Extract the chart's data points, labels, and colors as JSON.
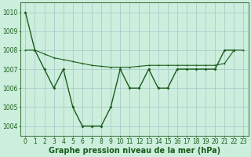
{
  "title": "Graphe pression niveau de la mer (hPa)",
  "background_color": "#cceedd",
  "grid_color": "#aacccc",
  "line_color": "#1a5c1a",
  "x_labels": [
    "0",
    "1",
    "2",
    "3",
    "4",
    "5",
    "6",
    "7",
    "8",
    "9",
    "10",
    "11",
    "12",
    "13",
    "14",
    "15",
    "16",
    "17",
    "18",
    "19",
    "20",
    "21",
    "22",
    "23"
  ],
  "series1": [
    1010,
    1008,
    1007,
    1006,
    1007,
    1005,
    1004,
    1004,
    1004,
    1005,
    1007,
    1006,
    1006,
    1007,
    1006,
    1006,
    1007,
    1007,
    1007,
    1007,
    1007,
    1008,
    1008,
    null
  ],
  "series2": [
    1008.0,
    1008.0,
    1007.8,
    1007.6,
    1007.5,
    1007.4,
    1007.3,
    1007.2,
    1007.15,
    1007.1,
    1007.1,
    1007.1,
    1007.15,
    1007.2,
    1007.2,
    1007.2,
    1007.2,
    1007.2,
    1007.2,
    1007.2,
    1007.2,
    1007.3,
    1008.0,
    1008.0
  ],
  "ylim": [
    1003.5,
    1010.5
  ],
  "yticks": [
    1004,
    1005,
    1006,
    1007,
    1008,
    1009,
    1010
  ],
  "title_fontsize": 7,
  "tick_fontsize": 5.5,
  "xlabel_fontsize": 7
}
